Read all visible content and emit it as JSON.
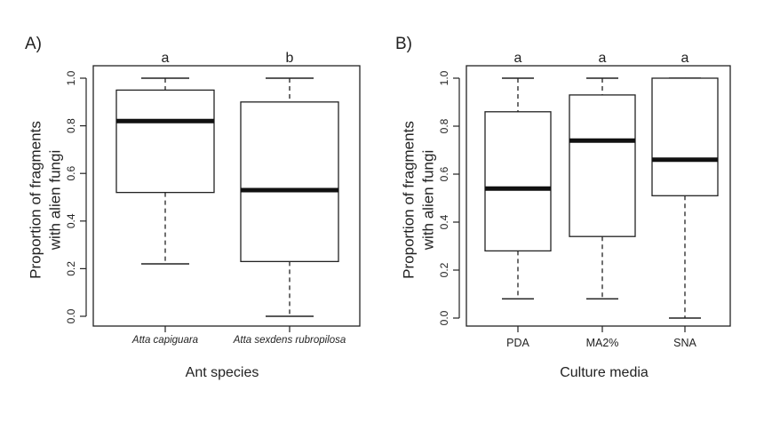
{
  "chart_data": [
    {
      "type": "boxplot",
      "panel_label": "A)",
      "xlabel": "Ant species",
      "ylabel_lines": [
        "Proportion of fragments",
        "with alien fungi"
      ],
      "ylim": [
        0,
        1
      ],
      "yticks": [
        "0.0",
        "0.2",
        "0.4",
        "0.6",
        "0.8",
        "1.0"
      ],
      "categories": [
        "Atta capiguara",
        "Atta sexdens rubropilosa"
      ],
      "category_style": "italic",
      "letters": [
        "a",
        "b"
      ],
      "boxes": [
        {
          "min": 0.22,
          "q1": 0.52,
          "median": 0.82,
          "q3": 0.95,
          "max": 1.0
        },
        {
          "min": 0.0,
          "q1": 0.23,
          "median": 0.53,
          "q3": 0.9,
          "max": 1.0
        }
      ]
    },
    {
      "type": "boxplot",
      "panel_label": "B)",
      "xlabel": "Culture media",
      "ylabel_lines": [
        "Proportion of fragments",
        "with alien fungi"
      ],
      "ylim": [
        0,
        1
      ],
      "yticks": [
        "0.0",
        "0.2",
        "0.4",
        "0.6",
        "0.8",
        "1.0"
      ],
      "categories": [
        "PDA",
        "MA2%",
        "SNA"
      ],
      "category_style": "normal",
      "letters": [
        "a",
        "a",
        "a"
      ],
      "boxes": [
        {
          "min": 0.08,
          "q1": 0.28,
          "median": 0.54,
          "q3": 0.86,
          "max": 1.0
        },
        {
          "min": 0.08,
          "q1": 0.34,
          "median": 0.74,
          "q3": 0.93,
          "max": 1.0
        },
        {
          "min": 0.0,
          "q1": 0.51,
          "median": 0.66,
          "q3": 1.0,
          "max": 1.0
        }
      ]
    }
  ]
}
